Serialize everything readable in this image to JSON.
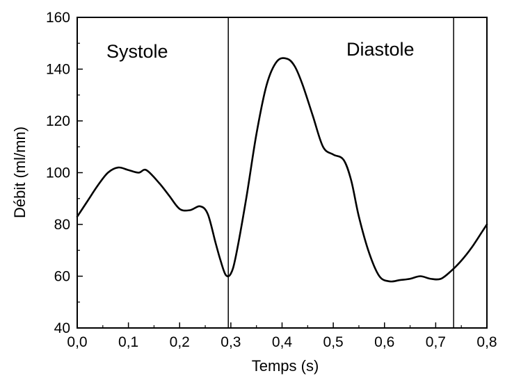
{
  "chart_data": {
    "type": "line",
    "title": "",
    "xlabel": "Temps (s)",
    "ylabel": "Débit (ml/mn)",
    "xlim": [
      0.0,
      0.8
    ],
    "ylim": [
      40,
      160
    ],
    "x_ticks": [
      "0,0",
      "0,1",
      "0,2",
      "0,3",
      "0,4",
      "0,5",
      "0,6",
      "0,7",
      "0,8"
    ],
    "y_ticks": [
      "40",
      "60",
      "80",
      "100",
      "120",
      "140",
      "160"
    ],
    "grid": false,
    "legend": "none",
    "series": [
      {
        "color": "#000000",
        "x": [
          0.0,
          0.02,
          0.04,
          0.06,
          0.08,
          0.1,
          0.12,
          0.135,
          0.16,
          0.18,
          0.2,
          0.22,
          0.24,
          0.255,
          0.27,
          0.28,
          0.29,
          0.3,
          0.31,
          0.33,
          0.35,
          0.37,
          0.39,
          0.41,
          0.425,
          0.44,
          0.46,
          0.48,
          0.5,
          0.52,
          0.535,
          0.55,
          0.57,
          0.59,
          0.61,
          0.63,
          0.65,
          0.67,
          0.69,
          0.71,
          0.73,
          0.75,
          0.77,
          0.79,
          0.8
        ],
        "y": [
          83,
          89,
          95,
          100,
          102,
          101,
          100,
          101,
          96,
          91,
          86,
          85.5,
          87,
          84,
          73,
          66,
          60.5,
          61,
          68,
          90,
          115,
          134,
          143,
          144,
          141,
          134,
          122,
          110,
          107,
          105,
          97,
          83,
          69,
          60,
          58,
          58.5,
          59,
          60,
          59,
          59,
          62,
          66,
          71,
          77,
          80
        ]
      }
    ],
    "vlines": [
      {
        "x": 0.295
      },
      {
        "x": 0.735
      }
    ],
    "annotations": [
      {
        "text": "Systole"
      },
      {
        "text": "Diastole"
      }
    ]
  }
}
